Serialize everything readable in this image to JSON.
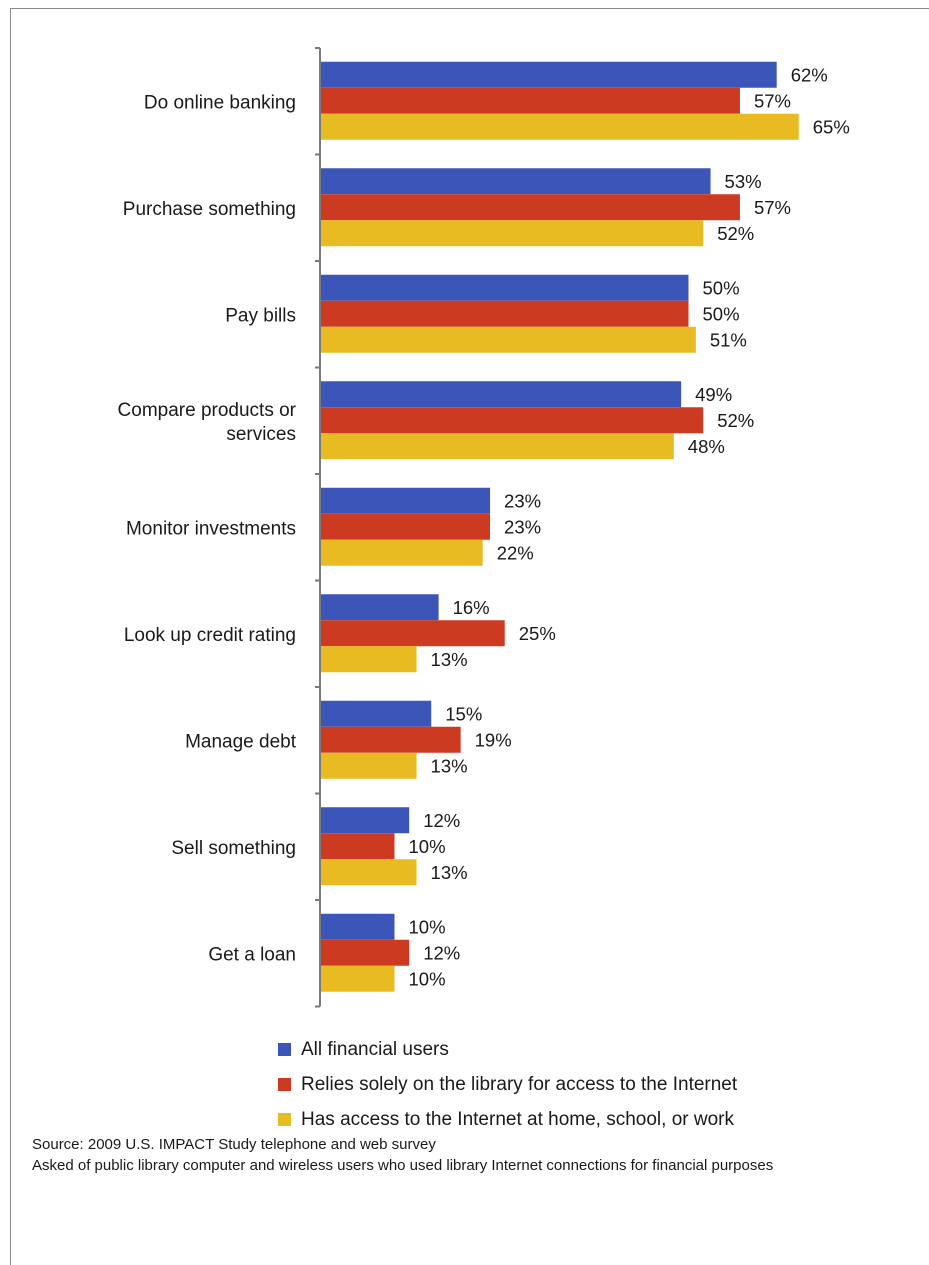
{
  "chart_data": {
    "type": "bar",
    "orientation": "horizontal",
    "categories": [
      "Do online banking",
      "Purchase something",
      "Pay bills",
      "Compare products or services",
      "Monitor investments",
      "Look up credit rating",
      "Manage debt",
      "Sell something",
      "Get a loan"
    ],
    "category_lines": [
      [
        "Do online banking"
      ],
      [
        "Purchase something"
      ],
      [
        "Pay bills"
      ],
      [
        "Compare products or",
        "services"
      ],
      [
        "Monitor investments"
      ],
      [
        "Look up credit rating"
      ],
      [
        "Manage debt"
      ],
      [
        "Sell something"
      ],
      [
        "Get a loan"
      ]
    ],
    "series": [
      {
        "name": "All financial users",
        "color": "#3b56b8",
        "values": [
          62,
          53,
          50,
          49,
          23,
          16,
          15,
          12,
          10
        ]
      },
      {
        "name": "Relies solely on the library for access to the Internet",
        "color": "#cc3a22",
        "values": [
          57,
          57,
          50,
          52,
          23,
          25,
          19,
          10,
          12
        ]
      },
      {
        "name": "Has access to the Internet at home, school, or work",
        "color": "#e8bb22",
        "values": [
          65,
          52,
          51,
          48,
          22,
          13,
          13,
          13,
          10
        ]
      }
    ],
    "value_suffix": "%",
    "xlim": [
      0,
      100
    ],
    "grid": false,
    "legend_position": "bottom"
  },
  "notes": {
    "source": "Source: 2009 U.S. IMPACT Study telephone and web survey",
    "asked": "Asked of public library computer and wireless users who used library Internet connections for financial purposes"
  }
}
